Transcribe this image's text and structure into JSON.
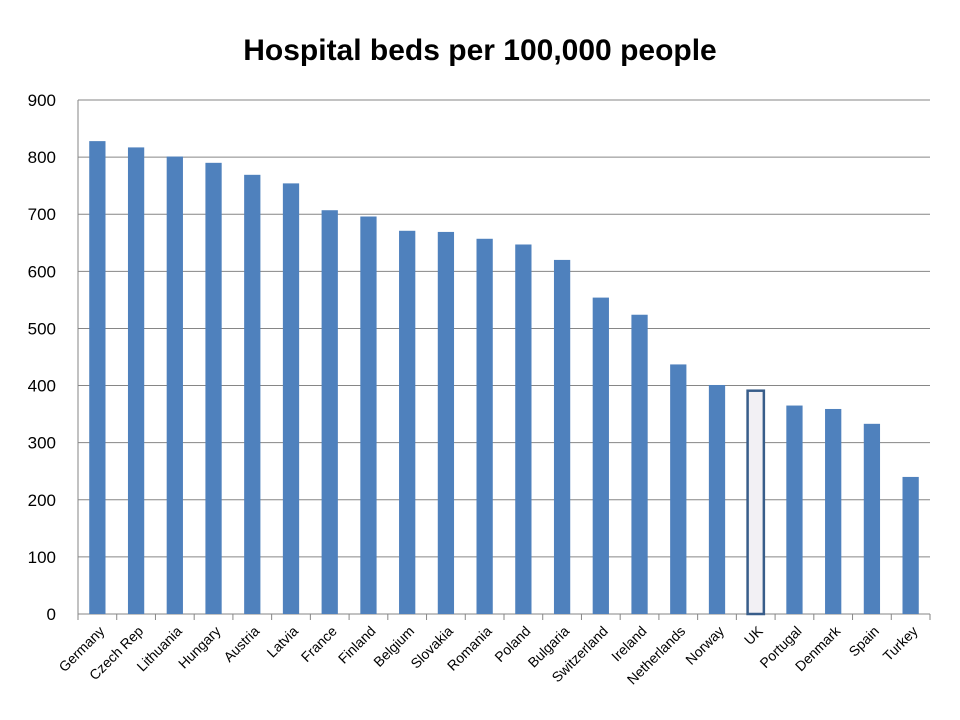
{
  "chart_data": {
    "type": "bar",
    "title": "Hospital beds per 100,000 people",
    "xlabel": "",
    "ylabel": "",
    "ylim": [
      0,
      900
    ],
    "yticks": [
      "0",
      "100",
      "200",
      "300",
      "400",
      "500",
      "600",
      "700",
      "800",
      "900"
    ],
    "grid": true,
    "legend": "none",
    "categories": [
      "Germany",
      "Czech Rep",
      "Lithuania",
      "Hungary",
      "Austria",
      "Latvia",
      "France",
      "Finland",
      "Belgium",
      "Slovakia",
      "Romania",
      "Poland",
      "Bulgaria",
      "Switzerland",
      "Ireland",
      "Netherlands",
      "Norway",
      "UK",
      "Portugal",
      "Denmark",
      "Spain",
      "Turkey"
    ],
    "values": [
      828,
      817,
      801,
      790,
      769,
      754,
      707,
      696,
      671,
      669,
      657,
      647,
      620,
      554,
      524,
      437,
      401,
      391,
      365,
      359,
      333,
      240
    ],
    "highlight": "UK",
    "colors": {
      "bar": "#4F81BD",
      "highlight_fill": "#F2F0F4",
      "highlight_stroke": "#385D8A",
      "grid": "#868686"
    }
  }
}
